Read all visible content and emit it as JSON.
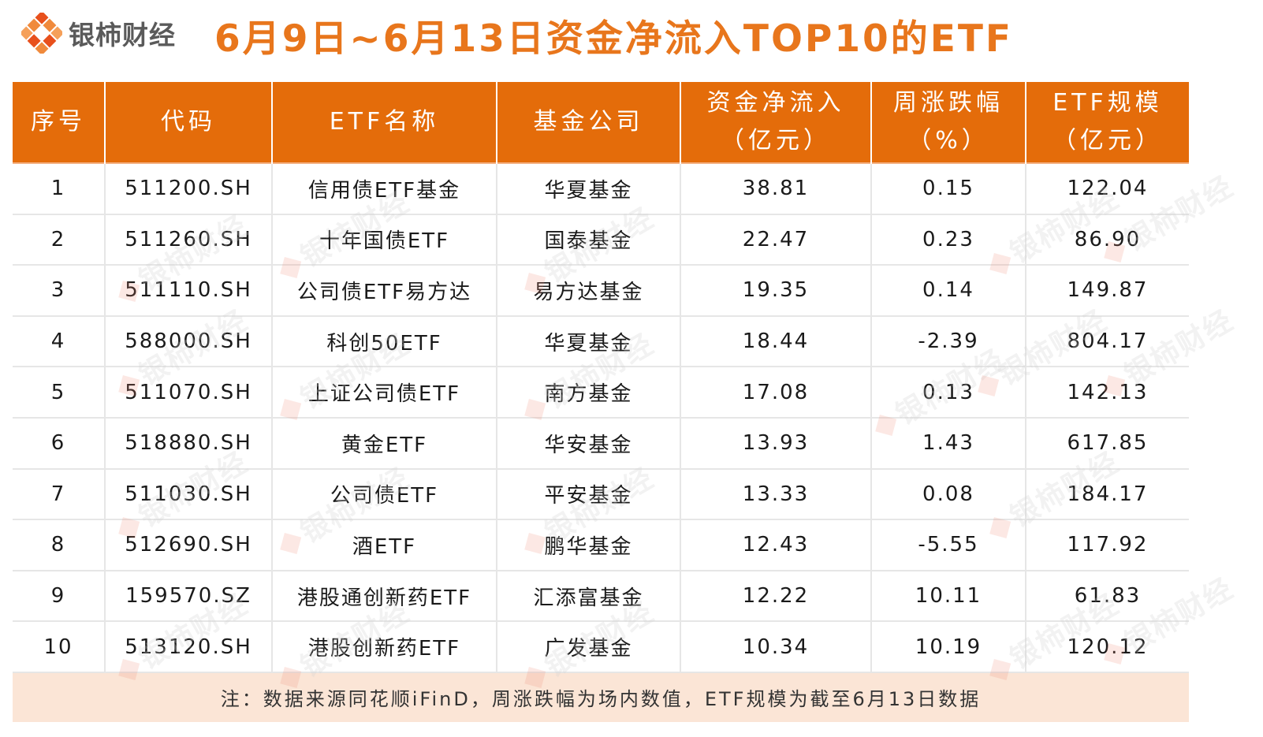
{
  "brand": {
    "name": "银柿财经"
  },
  "title": "6月9日~6月13日资金净流入TOP10的ETF",
  "colors": {
    "accent": "#e8761c",
    "header_bg": "#e46c0a",
    "note_bg": "#fbe5d6"
  },
  "table": {
    "headers": [
      {
        "line1": "序号",
        "line2": ""
      },
      {
        "line1": "代码",
        "line2": ""
      },
      {
        "line1": "ETF名称",
        "line2": ""
      },
      {
        "line1": "基金公司",
        "line2": ""
      },
      {
        "line1": "资金净流入",
        "line2": "（亿元）"
      },
      {
        "line1": "周涨跌幅",
        "line2": "（%）"
      },
      {
        "line1": "ETF规模",
        "line2": "（亿元）"
      }
    ],
    "rows": [
      [
        "1",
        "511200.SH",
        "信用债ETF基金",
        "华夏基金",
        "38.81",
        "0.15",
        "122.04"
      ],
      [
        "2",
        "511260.SH",
        "十年国债ETF",
        "国泰基金",
        "22.47",
        "0.23",
        "86.90"
      ],
      [
        "3",
        "511110.SH",
        "公司债ETF易方达",
        "易方达基金",
        "19.35",
        "0.14",
        "149.87"
      ],
      [
        "4",
        "588000.SH",
        "科创50ETF",
        "华夏基金",
        "18.44",
        "-2.39",
        "804.17"
      ],
      [
        "5",
        "511070.SH",
        "上证公司债ETF",
        "南方基金",
        "17.08",
        "0.13",
        "142.13"
      ],
      [
        "6",
        "518880.SH",
        "黄金ETF",
        "华安基金",
        "13.93",
        "1.43",
        "617.85"
      ],
      [
        "7",
        "511030.SH",
        "公司债ETF",
        "平安基金",
        "13.33",
        "0.08",
        "184.17"
      ],
      [
        "8",
        "512690.SH",
        "酒ETF",
        "鹏华基金",
        "12.43",
        "-5.55",
        "117.92"
      ],
      [
        "9",
        "159570.SZ",
        "港股通创新药ETF",
        "汇添富基金",
        "12.22",
        "10.11",
        "61.83"
      ],
      [
        "10",
        "513120.SH",
        "港股创新药ETF",
        "广发基金",
        "10.34",
        "10.19",
        "120.12"
      ]
    ],
    "note": "注：数据来源同花顺iFinD，周涨跌幅为场内数值，ETF规模为截至6月13日数据"
  },
  "watermark": "银柿财经"
}
